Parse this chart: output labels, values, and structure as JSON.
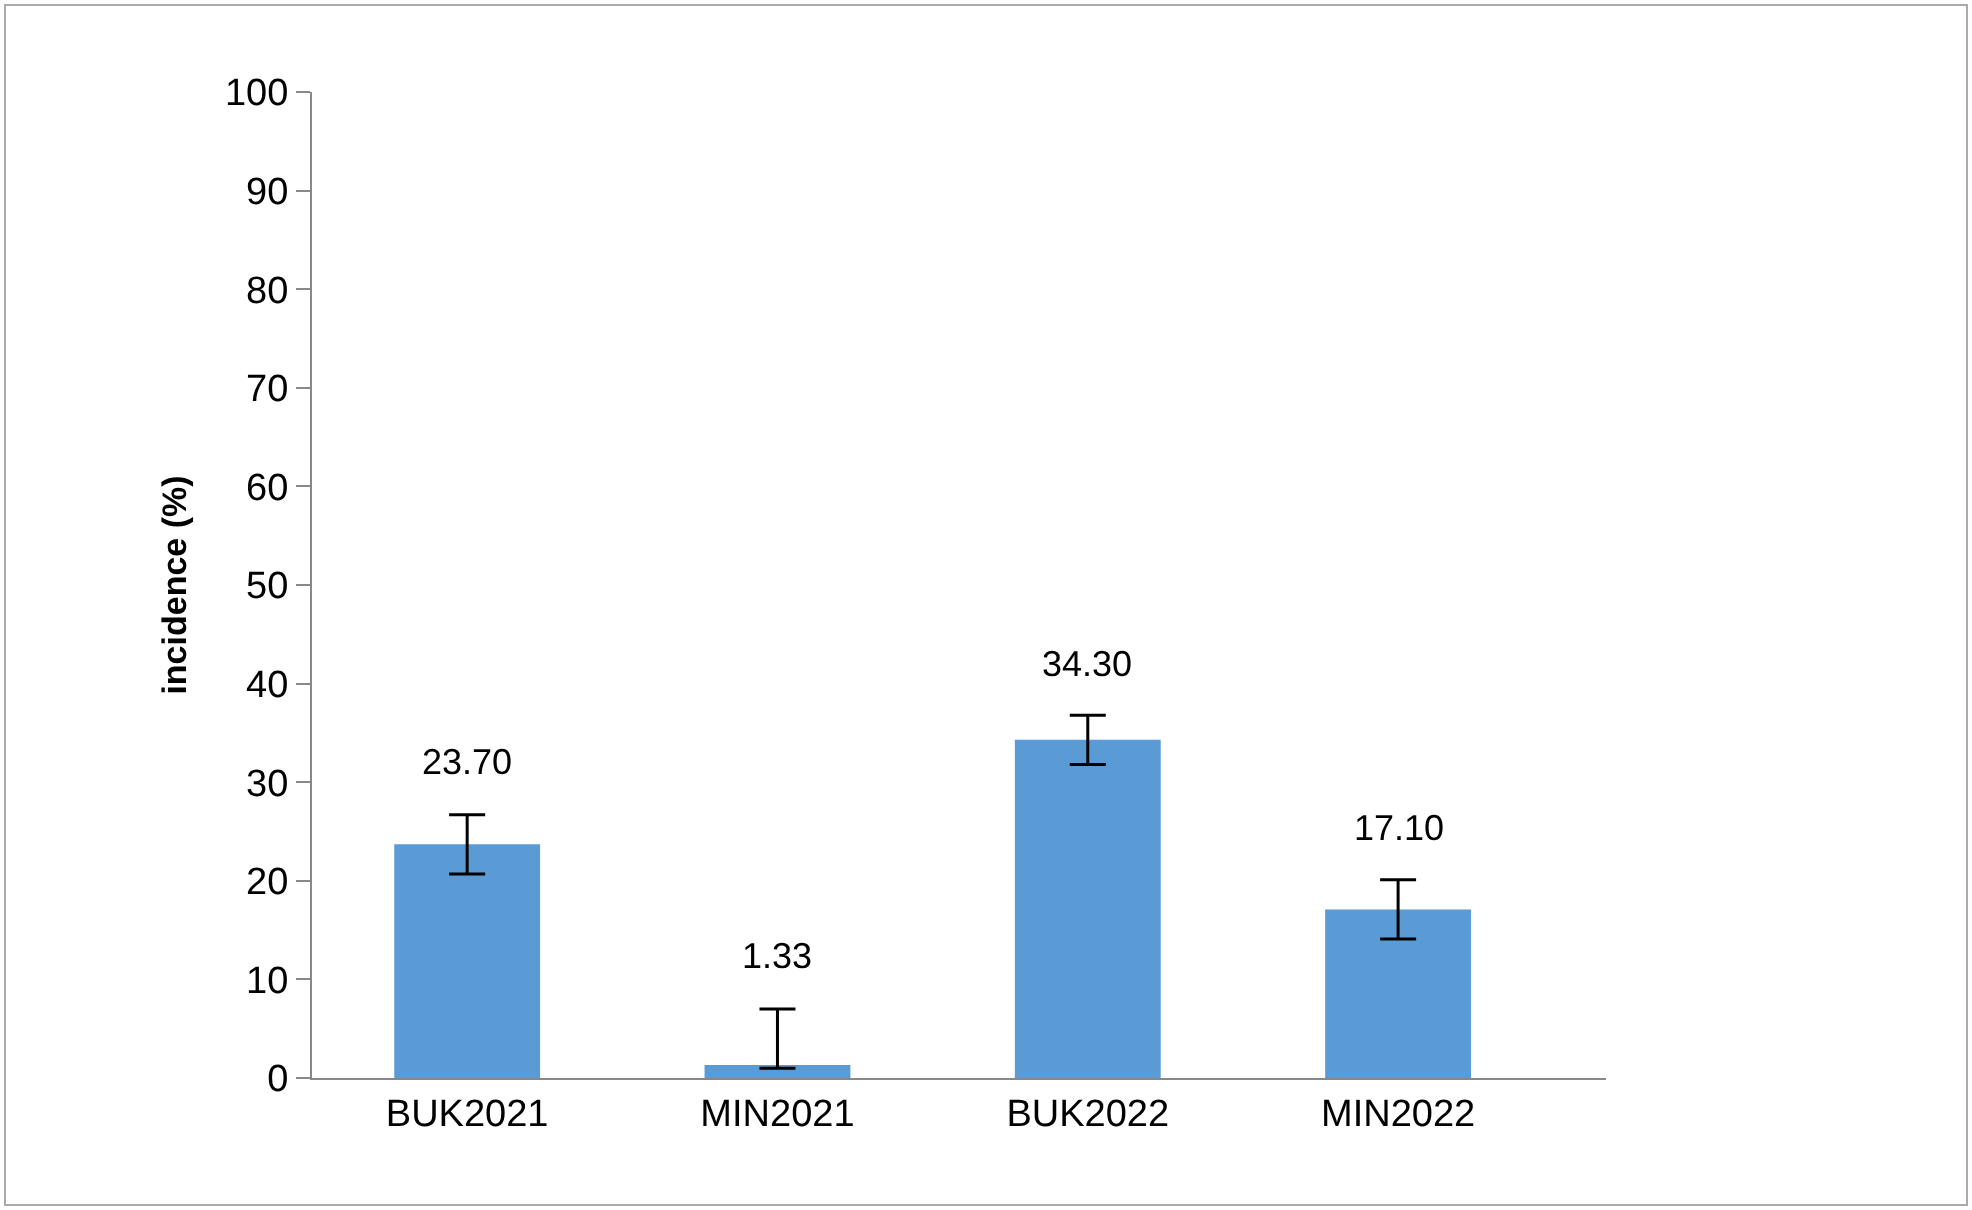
{
  "chart_data": {
    "type": "bar",
    "ylabel": "incidence (%)",
    "categories": [
      "BUK2021",
      "MIN2021",
      "BUK2022",
      "MIN2022"
    ],
    "values": [
      23.7,
      1.33,
      34.3,
      17.1
    ],
    "value_labels": [
      "23.70",
      "1.33",
      "34.30",
      "17.10"
    ],
    "errors": [
      3,
      [
        1,
        7
      ],
      2.5,
      3
    ],
    "color": "#5b9bd5",
    "ylim": [
      0,
      100
    ],
    "yticks": [
      0,
      10,
      20,
      30,
      40,
      50,
      60,
      70,
      80,
      90,
      100
    ],
    "grid": false
  }
}
